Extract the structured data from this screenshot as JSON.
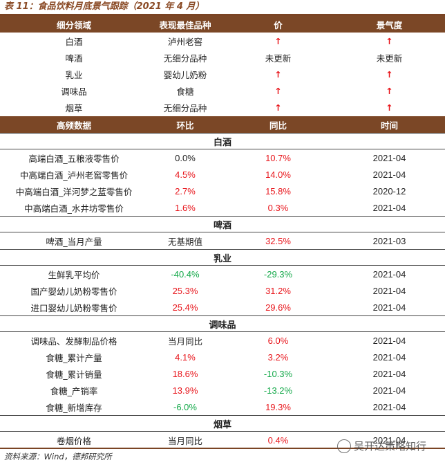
{
  "title": "表 11：食品饮料月底景气跟踪（2021 年 4 月）",
  "summary": {
    "headers": [
      "细分领域",
      "表现最佳品种",
      "价",
      "景气度"
    ],
    "rows": [
      {
        "sector": "白酒",
        "best": "泸州老窖",
        "price": "↑",
        "boom": "↑"
      },
      {
        "sector": "啤酒",
        "best": "无细分品种",
        "price": "未更新",
        "boom": "未更新"
      },
      {
        "sector": "乳业",
        "best": "婴幼儿奶粉",
        "price": "↑",
        "boom": "↑"
      },
      {
        "sector": "调味品",
        "best": "食糖",
        "price": "↑",
        "boom": "↑"
      },
      {
        "sector": "烟草",
        "best": "无细分品种",
        "price": "↑",
        "boom": "↑"
      }
    ]
  },
  "hf": {
    "headers": [
      "高频数据",
      "环比",
      "同比",
      "时间"
    ],
    "sections": [
      {
        "name": "白酒",
        "rows": [
          {
            "item": "高端白酒_五粮液零售价",
            "mom": "0.0%",
            "mom_color": "neutral",
            "yoy": "10.7%",
            "yoy_color": "red",
            "time": "2021-04"
          },
          {
            "item": "中高端白酒_泸州老窖零售价",
            "mom": "4.5%",
            "mom_color": "red",
            "yoy": "14.0%",
            "yoy_color": "red",
            "time": "2021-04"
          },
          {
            "item": "中高端白酒_洋河梦之蓝零售价",
            "mom": "2.7%",
            "mom_color": "red",
            "yoy": "15.8%",
            "yoy_color": "red",
            "time": "2020-12"
          },
          {
            "item": "中高端白酒_水井坊零售价",
            "mom": "1.6%",
            "mom_color": "red",
            "yoy": "0.3%",
            "yoy_color": "red",
            "time": "2021-04"
          }
        ]
      },
      {
        "name": "啤酒",
        "rows": [
          {
            "item": "啤酒_当月产量",
            "mom": "无基期值",
            "mom_color": "cn",
            "yoy": "32.5%",
            "yoy_color": "red",
            "time": "2021-03"
          }
        ]
      },
      {
        "name": "乳业",
        "rows": [
          {
            "item": "生鲜乳平均价",
            "mom": "-40.4%",
            "mom_color": "green",
            "yoy": "-29.3%",
            "yoy_color": "green",
            "time": "2021-04"
          },
          {
            "item": "国产婴幼儿奶粉零售价",
            "mom": "25.3%",
            "mom_color": "red",
            "yoy": "31.2%",
            "yoy_color": "red",
            "time": "2021-04"
          },
          {
            "item": "进口婴幼儿奶粉零售价",
            "mom": "25.4%",
            "mom_color": "red",
            "yoy": "29.6%",
            "yoy_color": "red",
            "time": "2021-04"
          }
        ]
      },
      {
        "name": "调味品",
        "rows": [
          {
            "item": "调味品、发酵制品价格",
            "mom": "当月同比",
            "mom_color": "cn",
            "yoy": "6.0%",
            "yoy_color": "red",
            "time": "2021-04"
          },
          {
            "item": "食糖_累计产量",
            "mom": "4.1%",
            "mom_color": "red",
            "yoy": "3.2%",
            "yoy_color": "red",
            "time": "2021-04"
          },
          {
            "item": "食糖_累计销量",
            "mom": "18.6%",
            "mom_color": "red",
            "yoy": "-10.3%",
            "yoy_color": "green",
            "time": "2021-04"
          },
          {
            "item": "食糖_产销率",
            "mom": "13.9%",
            "mom_color": "red",
            "yoy": "-13.2%",
            "yoy_color": "green",
            "time": "2021-04"
          },
          {
            "item": "食糖_新增库存",
            "mom": "-6.0%",
            "mom_color": "green",
            "yoy": "19.3%",
            "yoy_color": "red",
            "time": "2021-04"
          }
        ]
      },
      {
        "name": "烟草",
        "rows": [
          {
            "item": "卷烟价格",
            "mom": "当月同比",
            "mom_color": "cn",
            "yoy": "0.4%",
            "yoy_color": "red",
            "time": "2021-04"
          }
        ]
      }
    ]
  },
  "source": "资料来源：Wind，德邦研究所",
  "watermark": "吴开达策略知行",
  "colors": {
    "header_bg": "#7b4726",
    "up": "#e8151b",
    "down": "#12a848"
  }
}
